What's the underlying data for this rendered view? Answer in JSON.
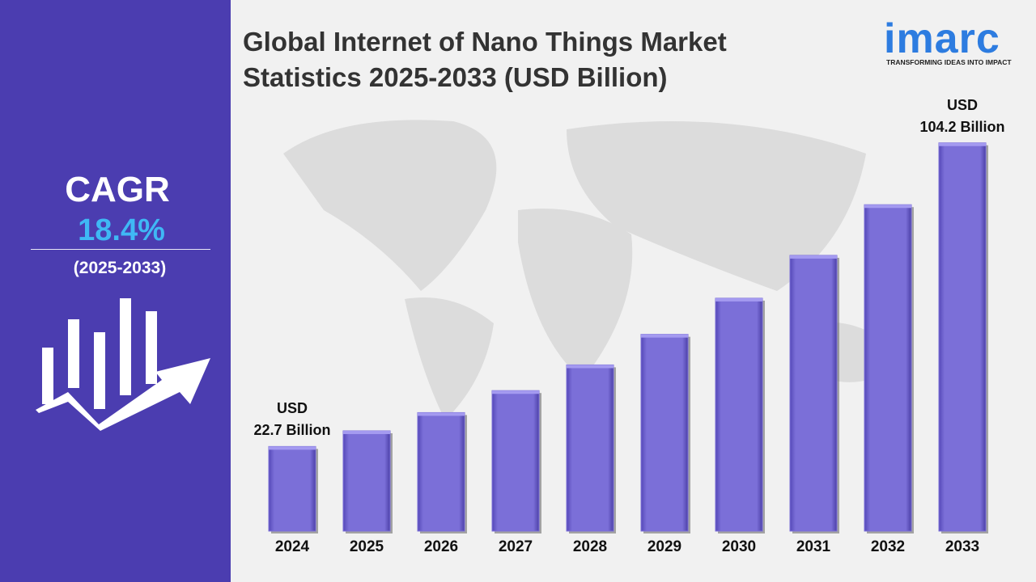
{
  "chart_data": {
    "type": "bar",
    "title": "Global Internet of Nano Things Market\nStatistics 2025-2033 (USD Billion)",
    "categories": [
      "2024",
      "2025",
      "2026",
      "2027",
      "2028",
      "2029",
      "2030",
      "2031",
      "2032",
      "2033"
    ],
    "values": [
      22.7,
      26.9,
      31.8,
      37.7,
      44.6,
      52.8,
      62.5,
      74.0,
      87.6,
      104.2
    ],
    "value_labels": [
      "USD\n22.7 Billion",
      null,
      null,
      null,
      null,
      null,
      null,
      null,
      null,
      "USD\n104.2 Billion"
    ],
    "color": "#7b6fd8",
    "ylim": [
      0,
      110
    ]
  },
  "sidebar": {
    "cagr_label": "CAGR",
    "cagr_value": "18.4%",
    "period": "(2025-2033)"
  },
  "logo": {
    "name": "imarc",
    "tagline": "TRANSFORMING IDEAS INTO IMPACT"
  }
}
